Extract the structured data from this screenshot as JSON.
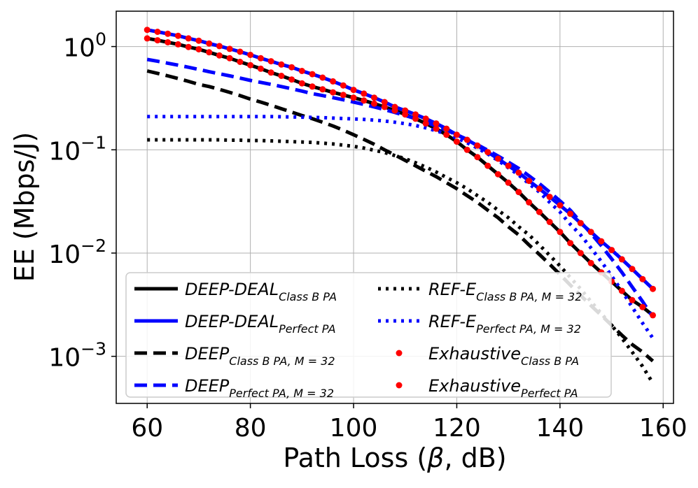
{
  "chart_data": {
    "type": "line",
    "y_scale": "log",
    "xlabel_main": "Path Loss (",
    "xlabel_symbol": "β",
    "xlabel_rest": ", dB)",
    "ylabel": "EE (Mbps/J)",
    "xlim": [
      54,
      162
    ],
    "ylim": [
      0.00035,
      2.2
    ],
    "grid": true,
    "legend_position": "lower-left",
    "x_ticks": [
      {
        "value": 60,
        "label": "60"
      },
      {
        "value": 80,
        "label": "80"
      },
      {
        "value": 100,
        "label": "100"
      },
      {
        "value": 120,
        "label": "120"
      },
      {
        "value": 140,
        "label": "140"
      },
      {
        "value": 160,
        "label": "160"
      }
    ],
    "y_ticks": [
      {
        "value": 1,
        "base": "10",
        "exp": "0"
      },
      {
        "value": 0.1,
        "base": "10",
        "exp": "−1"
      },
      {
        "value": 0.01,
        "base": "10",
        "exp": "−2"
      },
      {
        "value": 0.001,
        "base": "10",
        "exp": "−3"
      }
    ],
    "x": [
      60,
      62,
      64,
      66,
      68,
      70,
      72,
      74,
      76,
      78,
      80,
      82,
      84,
      86,
      88,
      90,
      92,
      94,
      96,
      98,
      100,
      102,
      104,
      106,
      108,
      110,
      112,
      114,
      116,
      118,
      120,
      122,
      124,
      126,
      128,
      130,
      132,
      134,
      136,
      138,
      140,
      142,
      144,
      146,
      148,
      150,
      152,
      154,
      156,
      158
    ],
    "series": [
      {
        "id": "s1",
        "name": "DEEP-DEAL",
        "sub": "Class B PA",
        "color": "#000000",
        "style": "solid",
        "values": [
          1.2,
          1.15,
          1.1,
          1.05,
          0.99,
          0.94,
          0.88,
          0.82,
          0.77,
          0.71,
          0.66,
          0.61,
          0.56,
          0.52,
          0.48,
          0.44,
          0.41,
          0.385,
          0.36,
          0.34,
          0.32,
          0.3,
          0.28,
          0.26,
          0.24,
          0.22,
          0.2,
          0.18,
          0.16,
          0.14,
          0.12,
          0.1,
          0.085,
          0.07,
          0.058,
          0.048,
          0.039,
          0.031,
          0.025,
          0.02,
          0.016,
          0.0125,
          0.01,
          0.008,
          0.0065,
          0.0053,
          0.0043,
          0.0035,
          0.003,
          0.0025
        ]
      },
      {
        "id": "s2",
        "name": "DEEP-DEAL",
        "sub": "Perfect PA",
        "color": "#0000ff",
        "style": "solid",
        "values": [
          1.45,
          1.39,
          1.33,
          1.27,
          1.2,
          1.14,
          1.07,
          1.01,
          0.95,
          0.89,
          0.83,
          0.77,
          0.72,
          0.67,
          0.63,
          0.58,
          0.54,
          0.5,
          0.46,
          0.42,
          0.38,
          0.35,
          0.32,
          0.29,
          0.26,
          0.24,
          0.22,
          0.2,
          0.18,
          0.16,
          0.14,
          0.125,
          0.11,
          0.095,
          0.082,
          0.07,
          0.06,
          0.05,
          0.042,
          0.035,
          0.029,
          0.024,
          0.0195,
          0.016,
          0.013,
          0.0107,
          0.0087,
          0.007,
          0.0056,
          0.0045
        ]
      },
      {
        "id": "s3",
        "name": "DEEP",
        "sub": "Class B PA,",
        "m": "M = 32",
        "color": "#000000",
        "style": "dashed",
        "values": [
          0.58,
          0.55,
          0.52,
          0.49,
          0.46,
          0.43,
          0.41,
          0.385,
          0.36,
          0.335,
          0.31,
          0.29,
          0.27,
          0.25,
          0.232,
          0.215,
          0.2,
          0.185,
          0.17,
          0.155,
          0.14,
          0.126,
          0.113,
          0.1,
          0.089,
          0.079,
          0.07,
          0.062,
          0.055,
          0.048,
          0.042,
          0.036,
          0.031,
          0.026,
          0.022,
          0.018,
          0.015,
          0.012,
          0.0097,
          0.0078,
          0.0062,
          0.0049,
          0.0039,
          0.0031,
          0.0025,
          0.002,
          0.0016,
          0.0013,
          0.0011,
          0.0009
        ]
      },
      {
        "id": "s4",
        "name": "DEEP",
        "sub": "Perfect PA,",
        "m": "M = 32",
        "color": "#0000ff",
        "style": "dashed",
        "values": [
          0.75,
          0.72,
          0.69,
          0.66,
          0.63,
          0.6,
          0.57,
          0.545,
          0.52,
          0.495,
          0.47,
          0.45,
          0.43,
          0.41,
          0.39,
          0.37,
          0.35,
          0.335,
          0.32,
          0.305,
          0.29,
          0.275,
          0.26,
          0.245,
          0.23,
          0.215,
          0.2,
          0.185,
          0.17,
          0.155,
          0.14,
          0.126,
          0.112,
          0.099,
          0.087,
          0.076,
          0.066,
          0.056,
          0.047,
          0.039,
          0.032,
          0.026,
          0.02,
          0.0155,
          0.0118,
          0.0088,
          0.0065,
          0.0047,
          0.0034,
          0.0024
        ]
      },
      {
        "id": "s5",
        "name": "REF-E",
        "sub": "Class B PA,",
        "m": "M = 32",
        "color": "#000000",
        "style": "dotted",
        "values": [
          0.125,
          0.125,
          0.125,
          0.125,
          0.125,
          0.125,
          0.125,
          0.125,
          0.124,
          0.124,
          0.123,
          0.123,
          0.122,
          0.121,
          0.12,
          0.119,
          0.118,
          0.116,
          0.114,
          0.111,
          0.108,
          0.104,
          0.099,
          0.094,
          0.088,
          0.082,
          0.075,
          0.068,
          0.061,
          0.054,
          0.048,
          0.042,
          0.036,
          0.031,
          0.026,
          0.022,
          0.018,
          0.015,
          0.012,
          0.0095,
          0.0075,
          0.0058,
          0.0045,
          0.0034,
          0.0026,
          0.002,
          0.0015,
          0.0011,
          0.0008,
          0.00055
        ]
      },
      {
        "id": "s6",
        "name": "REF-E",
        "sub": "Perfect PA,",
        "m": "M = 32",
        "color": "#0000ff",
        "style": "dotted",
        "values": [
          0.21,
          0.21,
          0.21,
          0.21,
          0.21,
          0.21,
          0.21,
          0.21,
          0.21,
          0.21,
          0.21,
          0.21,
          0.21,
          0.209,
          0.208,
          0.207,
          0.206,
          0.205,
          0.203,
          0.201,
          0.199,
          0.197,
          0.194,
          0.19,
          0.185,
          0.179,
          0.172,
          0.163,
          0.153,
          0.142,
          0.13,
          0.117,
          0.104,
          0.091,
          0.079,
          0.067,
          0.057,
          0.047,
          0.039,
          0.031,
          0.025,
          0.019,
          0.015,
          0.0112,
          0.0083,
          0.006,
          0.0043,
          0.003,
          0.0021,
          0.0015
        ]
      },
      {
        "id": "s7",
        "name": "Exhaustive",
        "sub": "Class B PA",
        "color": "#ff0000",
        "style": "markers",
        "values": [
          1.2,
          1.15,
          1.1,
          1.05,
          0.99,
          0.94,
          0.88,
          0.82,
          0.77,
          0.71,
          0.66,
          0.61,
          0.56,
          0.52,
          0.48,
          0.44,
          0.41,
          0.385,
          0.36,
          0.34,
          0.32,
          0.3,
          0.28,
          0.26,
          0.24,
          0.22,
          0.2,
          0.18,
          0.16,
          0.14,
          0.12,
          0.1,
          0.085,
          0.07,
          0.058,
          0.048,
          0.039,
          0.031,
          0.025,
          0.02,
          0.016,
          0.0125,
          0.01,
          0.008,
          0.0065,
          0.0053,
          0.0043,
          0.0035,
          0.003,
          0.0025
        ]
      },
      {
        "id": "s8",
        "name": "Exhaustive",
        "sub": "Perfect PA",
        "color": "#ff0000",
        "style": "markers",
        "values": [
          1.45,
          1.39,
          1.33,
          1.27,
          1.2,
          1.14,
          1.07,
          1.01,
          0.95,
          0.89,
          0.83,
          0.77,
          0.72,
          0.67,
          0.63,
          0.58,
          0.54,
          0.5,
          0.46,
          0.42,
          0.38,
          0.35,
          0.32,
          0.29,
          0.26,
          0.24,
          0.22,
          0.2,
          0.18,
          0.16,
          0.14,
          0.125,
          0.11,
          0.095,
          0.082,
          0.07,
          0.06,
          0.05,
          0.042,
          0.035,
          0.029,
          0.024,
          0.0195,
          0.016,
          0.013,
          0.0107,
          0.0087,
          0.007,
          0.0056,
          0.0045
        ]
      }
    ]
  }
}
